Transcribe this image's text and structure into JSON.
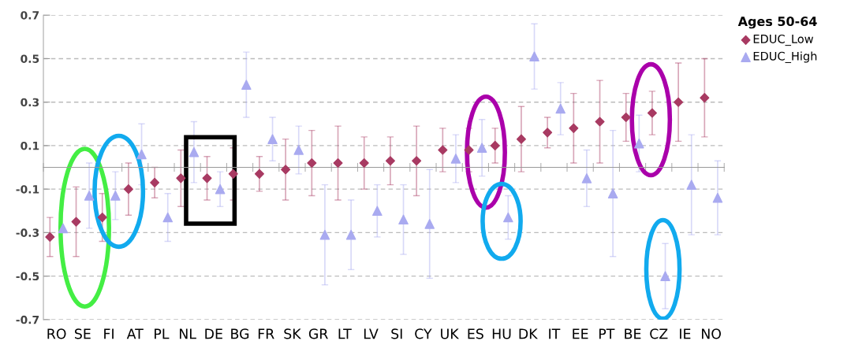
{
  "chart_data": {
    "type": "scatter",
    "categories": [
      "RO",
      "SE",
      "FI",
      "AT",
      "PL",
      "NL",
      "DE",
      "BG",
      "FR",
      "SK",
      "GR",
      "LT",
      "LV",
      "SI",
      "CY",
      "UK",
      "ES",
      "HU",
      "DK",
      "IT",
      "EE",
      "PT",
      "BE",
      "CZ",
      "IE",
      "NO"
    ],
    "series": [
      {
        "name": "EDUC_Low",
        "color": "#a83a62",
        "marker": "diamond",
        "values": [
          -0.32,
          -0.25,
          -0.23,
          -0.1,
          -0.07,
          -0.05,
          -0.05,
          -0.03,
          -0.03,
          -0.01,
          0.02,
          0.02,
          0.02,
          0.03,
          0.03,
          0.08,
          0.08,
          0.1,
          0.13,
          0.16,
          0.18,
          0.21,
          0.23,
          0.25,
          0.3,
          0.32
        ],
        "errors": [
          0.09,
          0.16,
          0.11,
          0.12,
          0.07,
          0.13,
          0.1,
          0.12,
          0.08,
          0.14,
          0.15,
          0.17,
          0.12,
          0.11,
          0.16,
          0.1,
          0.1,
          0.08,
          0.15,
          0.07,
          0.16,
          0.19,
          0.11,
          0.1,
          0.18,
          0.18
        ]
      },
      {
        "name": "EDUC_High",
        "color": "#a9aaf0",
        "marker": "triangle",
        "values": [
          -0.28,
          -0.13,
          -0.13,
          0.06,
          -0.23,
          0.07,
          -0.1,
          0.38,
          0.13,
          0.08,
          -0.31,
          -0.31,
          -0.2,
          -0.24,
          -0.26,
          0.04,
          0.09,
          -0.23,
          0.51,
          0.27,
          -0.05,
          -0.12,
          0.11,
          -0.5,
          -0.08,
          -0.14
        ],
        "errors": [
          null,
          0.15,
          0.11,
          0.14,
          0.11,
          0.14,
          0.08,
          0.15,
          0.1,
          0.11,
          0.23,
          0.16,
          0.12,
          0.16,
          0.25,
          0.11,
          0.13,
          0.1,
          0.15,
          0.12,
          0.13,
          0.29,
          0.13,
          0.15,
          0.23,
          0.17
        ]
      }
    ],
    "ylim": [
      -0.7,
      0.7
    ],
    "yticks": [
      0.7,
      0.5,
      0.3,
      0.1,
      {
        "value": -0.1,
        "label": "-0.1"
      },
      {
        "value": -0.3,
        "label": "-0.3"
      },
      {
        "value": -0.5,
        "label": "-0.5"
      },
      {
        "value": -0.7,
        "label": "-0.7"
      }
    ],
    "grid": "y",
    "legend": "top right",
    "legend_title": "Ages 50-64"
  }
}
